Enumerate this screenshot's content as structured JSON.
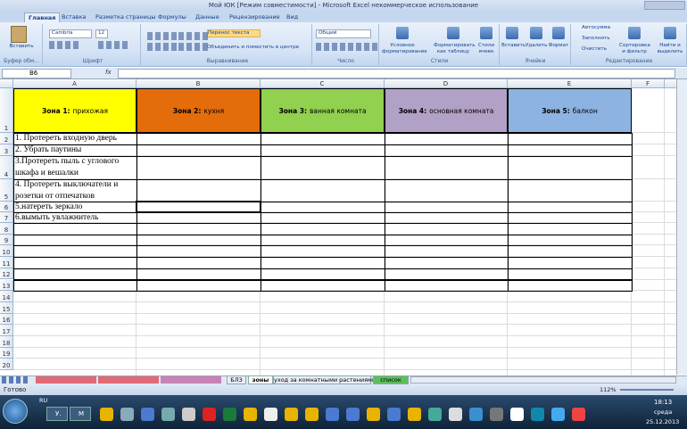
{
  "window": {
    "title": "Мой ЮК  [Режим совместимости] - Microsoft Excel некоммерческое использование"
  },
  "ribbon": {
    "tabs": [
      "Главная",
      "Вставка",
      "Разметка страницы",
      "Формулы",
      "Данные",
      "Рецензирование",
      "Вид"
    ],
    "groups": [
      "Буфер обм...",
      "Шрифт",
      "Выравнивание",
      "Число",
      "Стили",
      "Ячейки",
      "Редактирование"
    ],
    "buttons": [
      "Вставить",
      "Cambria",
      "12",
      "Перенос текста",
      "Объединить и поместить в центре",
      "Общий",
      "Условное форматирование",
      "Форматировать как таблицу",
      "Стили ячеек",
      "Вставить",
      "Удалить",
      "Формат",
      "Автосумма",
      "Заполнить",
      "Очистить",
      "Сортировка и фильтр",
      "Найти и выделить"
    ]
  },
  "formula_bar": {
    "name_box": "B6",
    "fx": "fx"
  },
  "sheet": {
    "columns": [
      "A",
      "B",
      "C",
      "D",
      "E",
      "F"
    ],
    "rows": [
      1,
      2,
      3,
      4,
      5,
      6,
      7,
      8,
      9,
      10,
      11,
      12,
      13,
      14,
      15,
      16,
      17,
      18,
      19,
      20
    ],
    "header": [
      {
        "zone": "Зона 1:",
        "name": "прихожая"
      },
      {
        "zone": "Зона 2:",
        "name": "кухня"
      },
      {
        "zone": "Зона 3:",
        "name": "ванная комната"
      },
      {
        "zone": "Зона 4:",
        "name": "основная комната"
      },
      {
        "zone": "Зона 5:",
        "name": "балкон"
      }
    ],
    "header_colors": [
      "#ffff00",
      "#e46c0a",
      "#92d050",
      "#b2a1c7",
      "#8db3e2"
    ],
    "tasks": [
      "1. Протереть входную дверь",
      "2. Убрать паутины",
      "3.Протереть пыль с углового шкафа и вешалки",
      "4. Протереть выключатели и розетки от отпечатков",
      "5.натереть зеркало",
      "6.вымыть увлажнитель"
    ]
  },
  "sheet_tabs": [
    "БЛЗ",
    "зоны",
    "уход за комнатными растениями",
    "список"
  ],
  "status": {
    "ready": "Готово",
    "zoom": "112%"
  },
  "taskbar": {
    "lang": "RU",
    "windows": [
      "У.",
      "M"
    ],
    "time": "18:13",
    "day": "среда",
    "date": "25.12.2013"
  }
}
